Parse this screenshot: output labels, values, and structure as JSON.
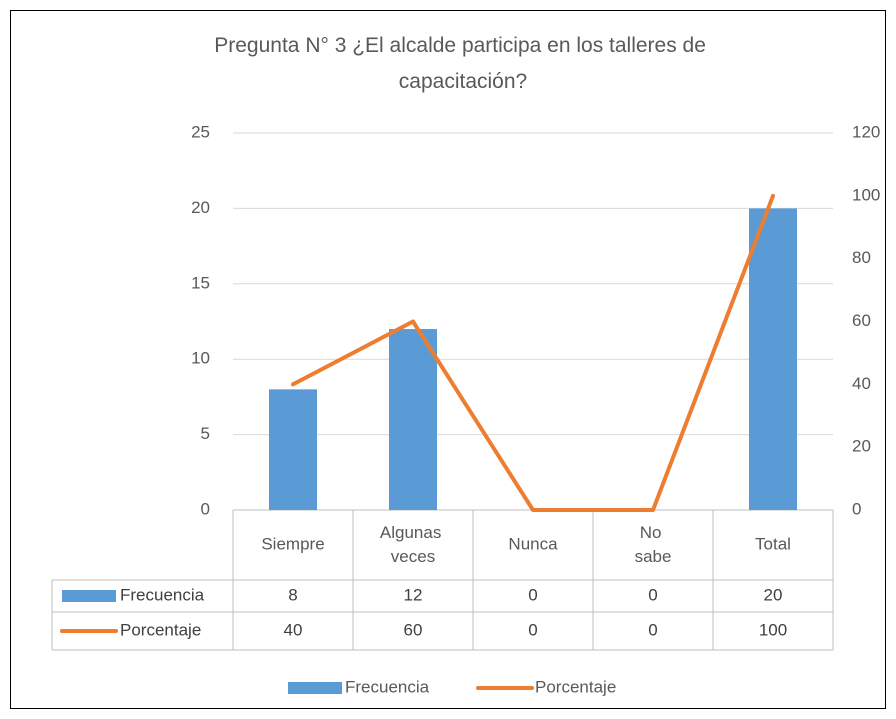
{
  "chart_data": {
    "type": "bar_line",
    "title": "Pregunta N° 3 ¿El alcalde participa en los talleres de capacitación?",
    "categories": [
      "Siempre",
      "Algunas veces",
      "Nunca",
      "No sabe",
      "Total"
    ],
    "series": [
      {
        "name": "Frecuencia",
        "type": "bar",
        "color": "#5b9bd5",
        "values": [
          8,
          12,
          0,
          0,
          20
        ]
      },
      {
        "name": "Porcentaje",
        "type": "line",
        "axis": "y2",
        "color": "#ed7d31",
        "values": [
          40,
          60,
          0,
          0,
          100
        ]
      }
    ],
    "ylim": [
      0,
      25
    ],
    "yticks": [
      0,
      5,
      10,
      15,
      20,
      25
    ],
    "y2lim": [
      0,
      120
    ],
    "y2ticks": [
      0,
      20,
      40,
      60,
      80,
      100,
      120
    ],
    "grid": true,
    "legend": "bottom",
    "data_table": true
  }
}
